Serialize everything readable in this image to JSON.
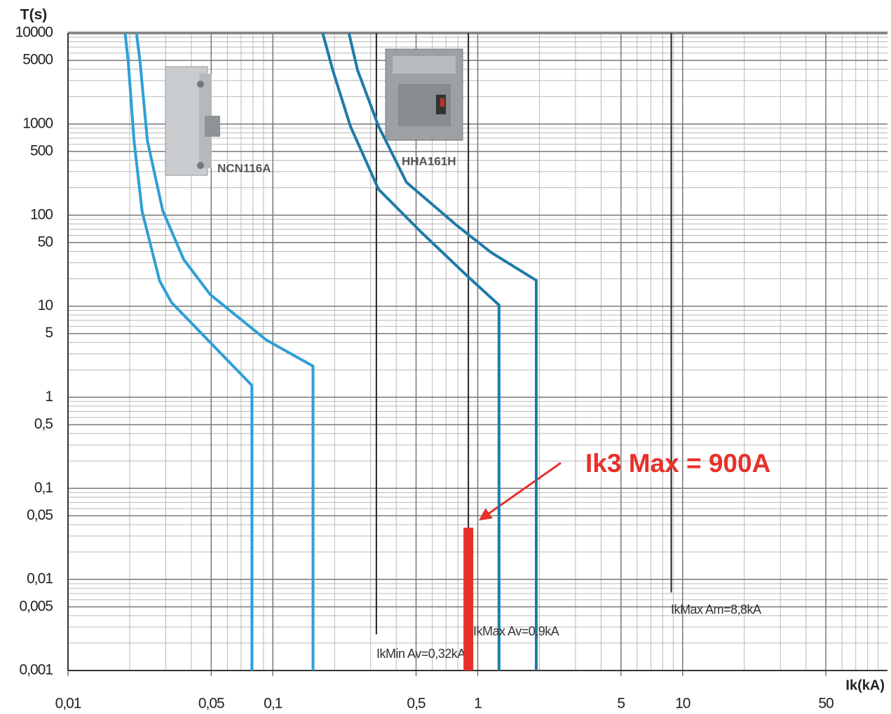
{
  "chart_data": {
    "type": "line",
    "x_label": "Ik(kA)",
    "y_label": "T(s)",
    "xscale": "log",
    "yscale": "log",
    "xlim": [
      0.01,
      100
    ],
    "ylim": [
      0.001,
      10000
    ],
    "xticks": [
      {
        "value": 0.01,
        "label": "0,01"
      },
      {
        "value": 0.05,
        "label": "0,05"
      },
      {
        "value": 0.1,
        "label": "0,1"
      },
      {
        "value": 0.5,
        "label": "0,5"
      },
      1,
      5,
      10,
      50
    ],
    "yticks": [
      10000,
      5000,
      1000,
      500,
      100,
      50,
      10,
      5,
      1,
      {
        "value": 0.5,
        "label": "0,5"
      },
      {
        "value": 0.1,
        "label": "0,1"
      },
      {
        "value": 0.05,
        "label": "0,05"
      },
      {
        "value": 0.01,
        "label": "0,01"
      },
      {
        "value": 0.005,
        "label": "0,005"
      },
      {
        "value": 0.001,
        "label": "0,001"
      }
    ],
    "grid": true,
    "series": [
      {
        "color": "#2f9fd8",
        "x": [
          0.019,
          0.0197,
          0.021,
          0.023,
          0.028,
          0.032,
          0.05,
          0.079,
          0.079
        ],
        "values": [
          10000,
          4700,
          660,
          110,
          19,
          11,
          3.9,
          1.35,
          0.001
        ]
      },
      {
        "color": "#2f9fd8",
        "x": [
          0.0216,
          0.0225,
          0.0244,
          0.029,
          0.0367,
          0.0495,
          0.093,
          0.157,
          0.157
        ],
        "values": [
          10000,
          4700,
          660,
          112,
          32.6,
          13.4,
          4.25,
          2.2,
          0.001
        ]
      },
      {
        "color": "#1f7ba8",
        "x": [
          0.175,
          0.196,
          0.239,
          0.328,
          0.526,
          0.898,
          1.27,
          1.27
        ],
        "values": [
          10000,
          3910,
          946,
          192,
          66,
          21,
          10.3,
          0.001
        ]
      },
      {
        "color": "#1f7ba8",
        "x": [
          0.235,
          0.259,
          0.328,
          0.449,
          0.78,
          1.16,
          1.93,
          1.93
        ],
        "values": [
          10000,
          3910,
          946,
          229,
          79,
          39,
          19.2,
          0.001
        ]
      }
    ],
    "devices": [
      {
        "label": "NCN116A"
      },
      {
        "label": "HHA161H"
      }
    ],
    "markers": [
      {
        "label": "IkMin Av=0,32kA",
        "x": 0.32,
        "y_end": 0.0025
      },
      {
        "label": "IkMax Av=0,9kA",
        "x": 0.9,
        "y_end": 0.001
      },
      {
        "label": "IkMax Am=8,8kA",
        "x": 8.8,
        "y_end": 0.0072
      }
    ],
    "highlight": {
      "label": "Ik3 Max = 900A",
      "x": 0.9,
      "y": [
        0.001,
        0.037
      ],
      "color": "#e8302a"
    }
  }
}
